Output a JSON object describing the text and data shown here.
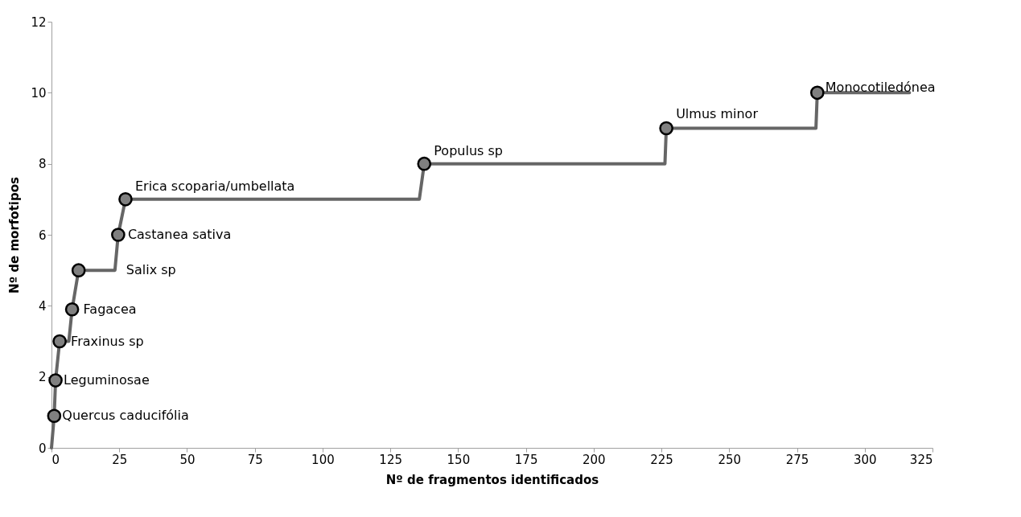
{
  "chart_data": {
    "type": "line",
    "xlabel": "Nº de fragmentos identificados",
    "ylabel": "Nº de morfotipos",
    "series": [
      {
        "color": "#666666",
        "marker": "none",
        "line_style": "solid",
        "x": [
          0,
          1,
          1.5,
          3,
          6.4,
          7.6,
          10,
          23.4,
          24.6,
          27.3,
          135.7,
          137.5,
          226.3,
          226.8,
          282,
          282.5,
          316.5
        ],
        "values": [
          0,
          0.9,
          1.9,
          3,
          3,
          3.9,
          5,
          5,
          6,
          7,
          7,
          8,
          8,
          9,
          9,
          10,
          10
        ]
      },
      {
        "type": "scatter",
        "color": "#808080",
        "marker": "circle",
        "x": [
          1,
          1.5,
          3,
          7.6,
          10,
          24.6,
          27.3,
          137.5,
          226.8,
          282.5
        ],
        "values": [
          0.9,
          1.9,
          3,
          3.9,
          5,
          6,
          7,
          8,
          9,
          10
        ]
      }
    ],
    "annotations": [
      {
        "text": "Quercus caducifólia",
        "x": 1,
        "y": 0.9
      },
      {
        "text": "Leguminosae",
        "x": 1.5,
        "y": 1.9
      },
      {
        "text": "Fraxinus sp",
        "x": 3,
        "y": 3
      },
      {
        "text": "Fagacea",
        "x": 7.6,
        "y": 3.9
      },
      {
        "text": "Salix sp",
        "x": 23.4,
        "y": 5
      },
      {
        "text": "Castanea sativa",
        "x": 24.6,
        "y": 6
      },
      {
        "text": "Erica scoparia/umbellata",
        "x": 27.3,
        "y": 7
      },
      {
        "text": "Populus sp",
        "x": 137.5,
        "y": 8
      },
      {
        "text": "Ulmus minor",
        "x": 226.8,
        "y": 9
      },
      {
        "text": "Monocotiledónea",
        "x": 282.5,
        "y": 10
      }
    ],
    "xlim": [
      0,
      325
    ],
    "xticks": [
      0,
      25,
      50,
      75,
      100,
      125,
      150,
      175,
      200,
      225,
      250,
      275,
      300,
      325
    ],
    "ylim": [
      0,
      12
    ],
    "yticks": [
      0,
      2,
      4,
      6,
      8,
      10,
      12
    ],
    "grid": false
  }
}
